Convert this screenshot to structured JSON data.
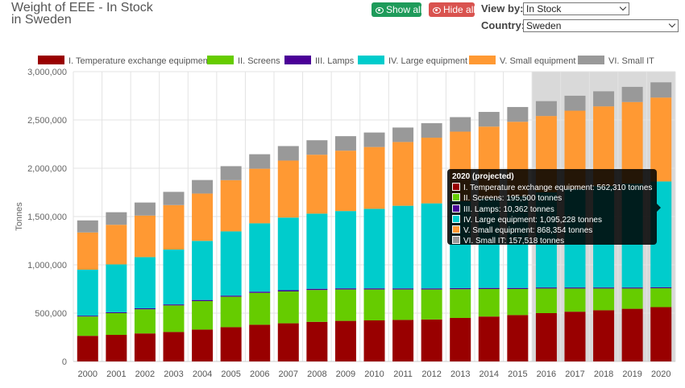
{
  "header": {
    "title_line1": "Weight of EEE - In Stock",
    "title_line2": "in Sweden",
    "show_all_label": "Show all",
    "hide_all_label": "Hide all",
    "view_by_label": "View by:",
    "view_by_value": "In Stock",
    "country_label": "Country:",
    "country_value": "Sweden"
  },
  "chart_data": {
    "type": "bar",
    "stacked": true,
    "title": "Weight of EEE - In Stock in Sweden",
    "ylabel": "Tonnes",
    "xlabel": "",
    "ylim": [
      0,
      3000000
    ],
    "yticks": [
      0,
      500000,
      1000000,
      1500000,
      2000000,
      2500000,
      3000000
    ],
    "ytick_labels": [
      "0",
      "500,000",
      "1,000,000",
      "1,500,000",
      "2,000,000",
      "2,500,000",
      "3,000,000"
    ],
    "categories": [
      "2000",
      "2001",
      "2002",
      "2003",
      "2004",
      "2005",
      "2006",
      "2007",
      "2008",
      "2009",
      "2010",
      "2011",
      "2012",
      "2013",
      "2014",
      "2015",
      "2016",
      "2017",
      "2018",
      "2019",
      "2020"
    ],
    "projected_categories": [
      "2016",
      "2017",
      "2018",
      "2019",
      "2020"
    ],
    "legend_position": "top",
    "grid": true,
    "series": [
      {
        "name": "I. Temperature exchange equipment",
        "color": "#990000",
        "values": [
          265000,
          275000,
          290000,
          305000,
          330000,
          355000,
          380000,
          395000,
          410000,
          420000,
          425000,
          430000,
          435000,
          450000,
          465000,
          480000,
          500000,
          515000,
          530000,
          545000,
          562310
        ]
      },
      {
        "name": "II. Screens",
        "color": "#66cc00",
        "values": [
          200000,
          225000,
          250000,
          275000,
          295000,
          315000,
          330000,
          330000,
          330000,
          325000,
          320000,
          315000,
          310000,
          298000,
          285000,
          270000,
          255000,
          240000,
          225000,
          210000,
          195500
        ]
      },
      {
        "name": "III. Lamps",
        "color": "#4b0097",
        "values": [
          9000,
          9500,
          10000,
          10500,
          11000,
          11500,
          12000,
          12500,
          12000,
          12000,
          11800,
          11500,
          11300,
          11000,
          11000,
          10800,
          10700,
          10600,
          10500,
          10400,
          10362
        ]
      },
      {
        "name": "IV. Large equipment",
        "color": "#00cccc",
        "values": [
          476000,
          495000,
          530000,
          568000,
          612000,
          665000,
          708000,
          752000,
          778000,
          800000,
          823000,
          855000,
          880000,
          900000,
          925000,
          950000,
          985000,
          1020000,
          1050000,
          1075000,
          1095228
        ]
      },
      {
        "name": "V. Small equipment",
        "color": "#ff9933",
        "values": [
          385000,
          410000,
          430000,
          460000,
          490000,
          530000,
          565000,
          590000,
          610000,
          625000,
          640000,
          660000,
          680000,
          720000,
          745000,
          770000,
          790000,
          810000,
          825000,
          845000,
          868354
        ]
      },
      {
        "name": "VI. Small IT",
        "color": "#999999",
        "values": [
          125000,
          130000,
          135000,
          137000,
          140000,
          145000,
          150000,
          150000,
          150000,
          150000,
          150000,
          150000,
          150000,
          150000,
          152000,
          153000,
          154000,
          155000,
          156000,
          157000,
          157518
        ]
      }
    ],
    "tooltip": {
      "title": "2020 (projected)",
      "rows": [
        "I. Temperature exchange equipment: 562,310 tonnes",
        "II. Screens: 195,500 tonnes",
        "III. Lamps: 10,362 tonnes",
        "IV. Large equipment: 1,095,228 tonnes",
        "V. Small equipment: 868,354 tonnes",
        "VI. Small IT: 157,518 tonnes"
      ]
    }
  }
}
